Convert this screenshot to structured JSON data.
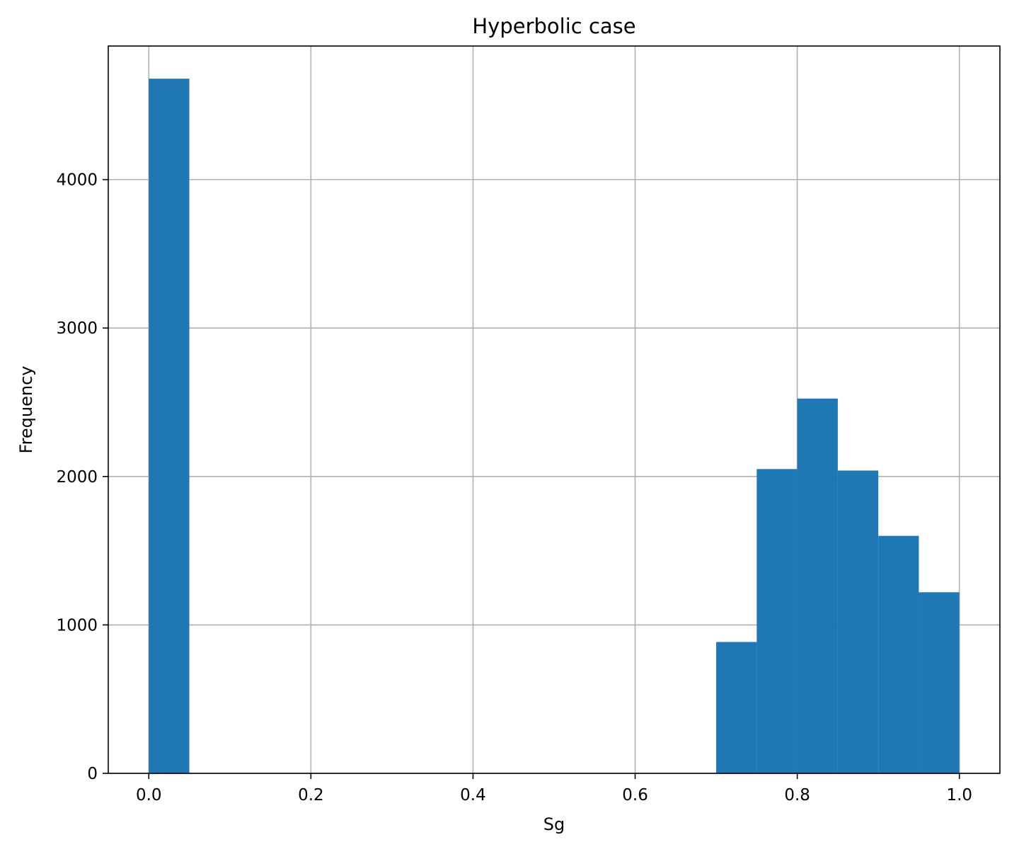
{
  "chart_data": {
    "type": "bar",
    "title": "Hyperbolic case",
    "xlabel": "Sg",
    "ylabel": "Frequency",
    "xlim": [
      -0.05,
      1.05
    ],
    "ylim": [
      0,
      4900
    ],
    "x_ticks": [
      0.0,
      0.2,
      0.4,
      0.6,
      0.8,
      1.0
    ],
    "x_tick_labels": [
      "0.0",
      "0.2",
      "0.4",
      "0.6",
      "0.8",
      "1.0"
    ],
    "y_ticks": [
      0,
      1000,
      2000,
      3000,
      4000
    ],
    "y_tick_labels": [
      "0",
      "1000",
      "2000",
      "3000",
      "4000"
    ],
    "grid": true,
    "bar_color": "#1f77b4",
    "bins": [
      {
        "x0": 0.0,
        "x1": 0.05,
        "value": 4680
      },
      {
        "x0": 0.05,
        "x1": 0.1,
        "value": 0
      },
      {
        "x0": 0.1,
        "x1": 0.15,
        "value": 0
      },
      {
        "x0": 0.15,
        "x1": 0.2,
        "value": 0
      },
      {
        "x0": 0.2,
        "x1": 0.25,
        "value": 0
      },
      {
        "x0": 0.25,
        "x1": 0.3,
        "value": 0
      },
      {
        "x0": 0.3,
        "x1": 0.35,
        "value": 0
      },
      {
        "x0": 0.35,
        "x1": 0.4,
        "value": 0
      },
      {
        "x0": 0.4,
        "x1": 0.45,
        "value": 0
      },
      {
        "x0": 0.45,
        "x1": 0.5,
        "value": 0
      },
      {
        "x0": 0.5,
        "x1": 0.55,
        "value": 0
      },
      {
        "x0": 0.55,
        "x1": 0.6,
        "value": 0
      },
      {
        "x0": 0.6,
        "x1": 0.65,
        "value": 0
      },
      {
        "x0": 0.65,
        "x1": 0.7,
        "value": 0
      },
      {
        "x0": 0.7,
        "x1": 0.75,
        "value": 885
      },
      {
        "x0": 0.75,
        "x1": 0.8,
        "value": 2050
      },
      {
        "x0": 0.8,
        "x1": 0.85,
        "value": 2525
      },
      {
        "x0": 0.85,
        "x1": 0.9,
        "value": 2040
      },
      {
        "x0": 0.9,
        "x1": 0.95,
        "value": 1600
      },
      {
        "x0": 0.95,
        "x1": 1.0,
        "value": 1220
      }
    ]
  }
}
